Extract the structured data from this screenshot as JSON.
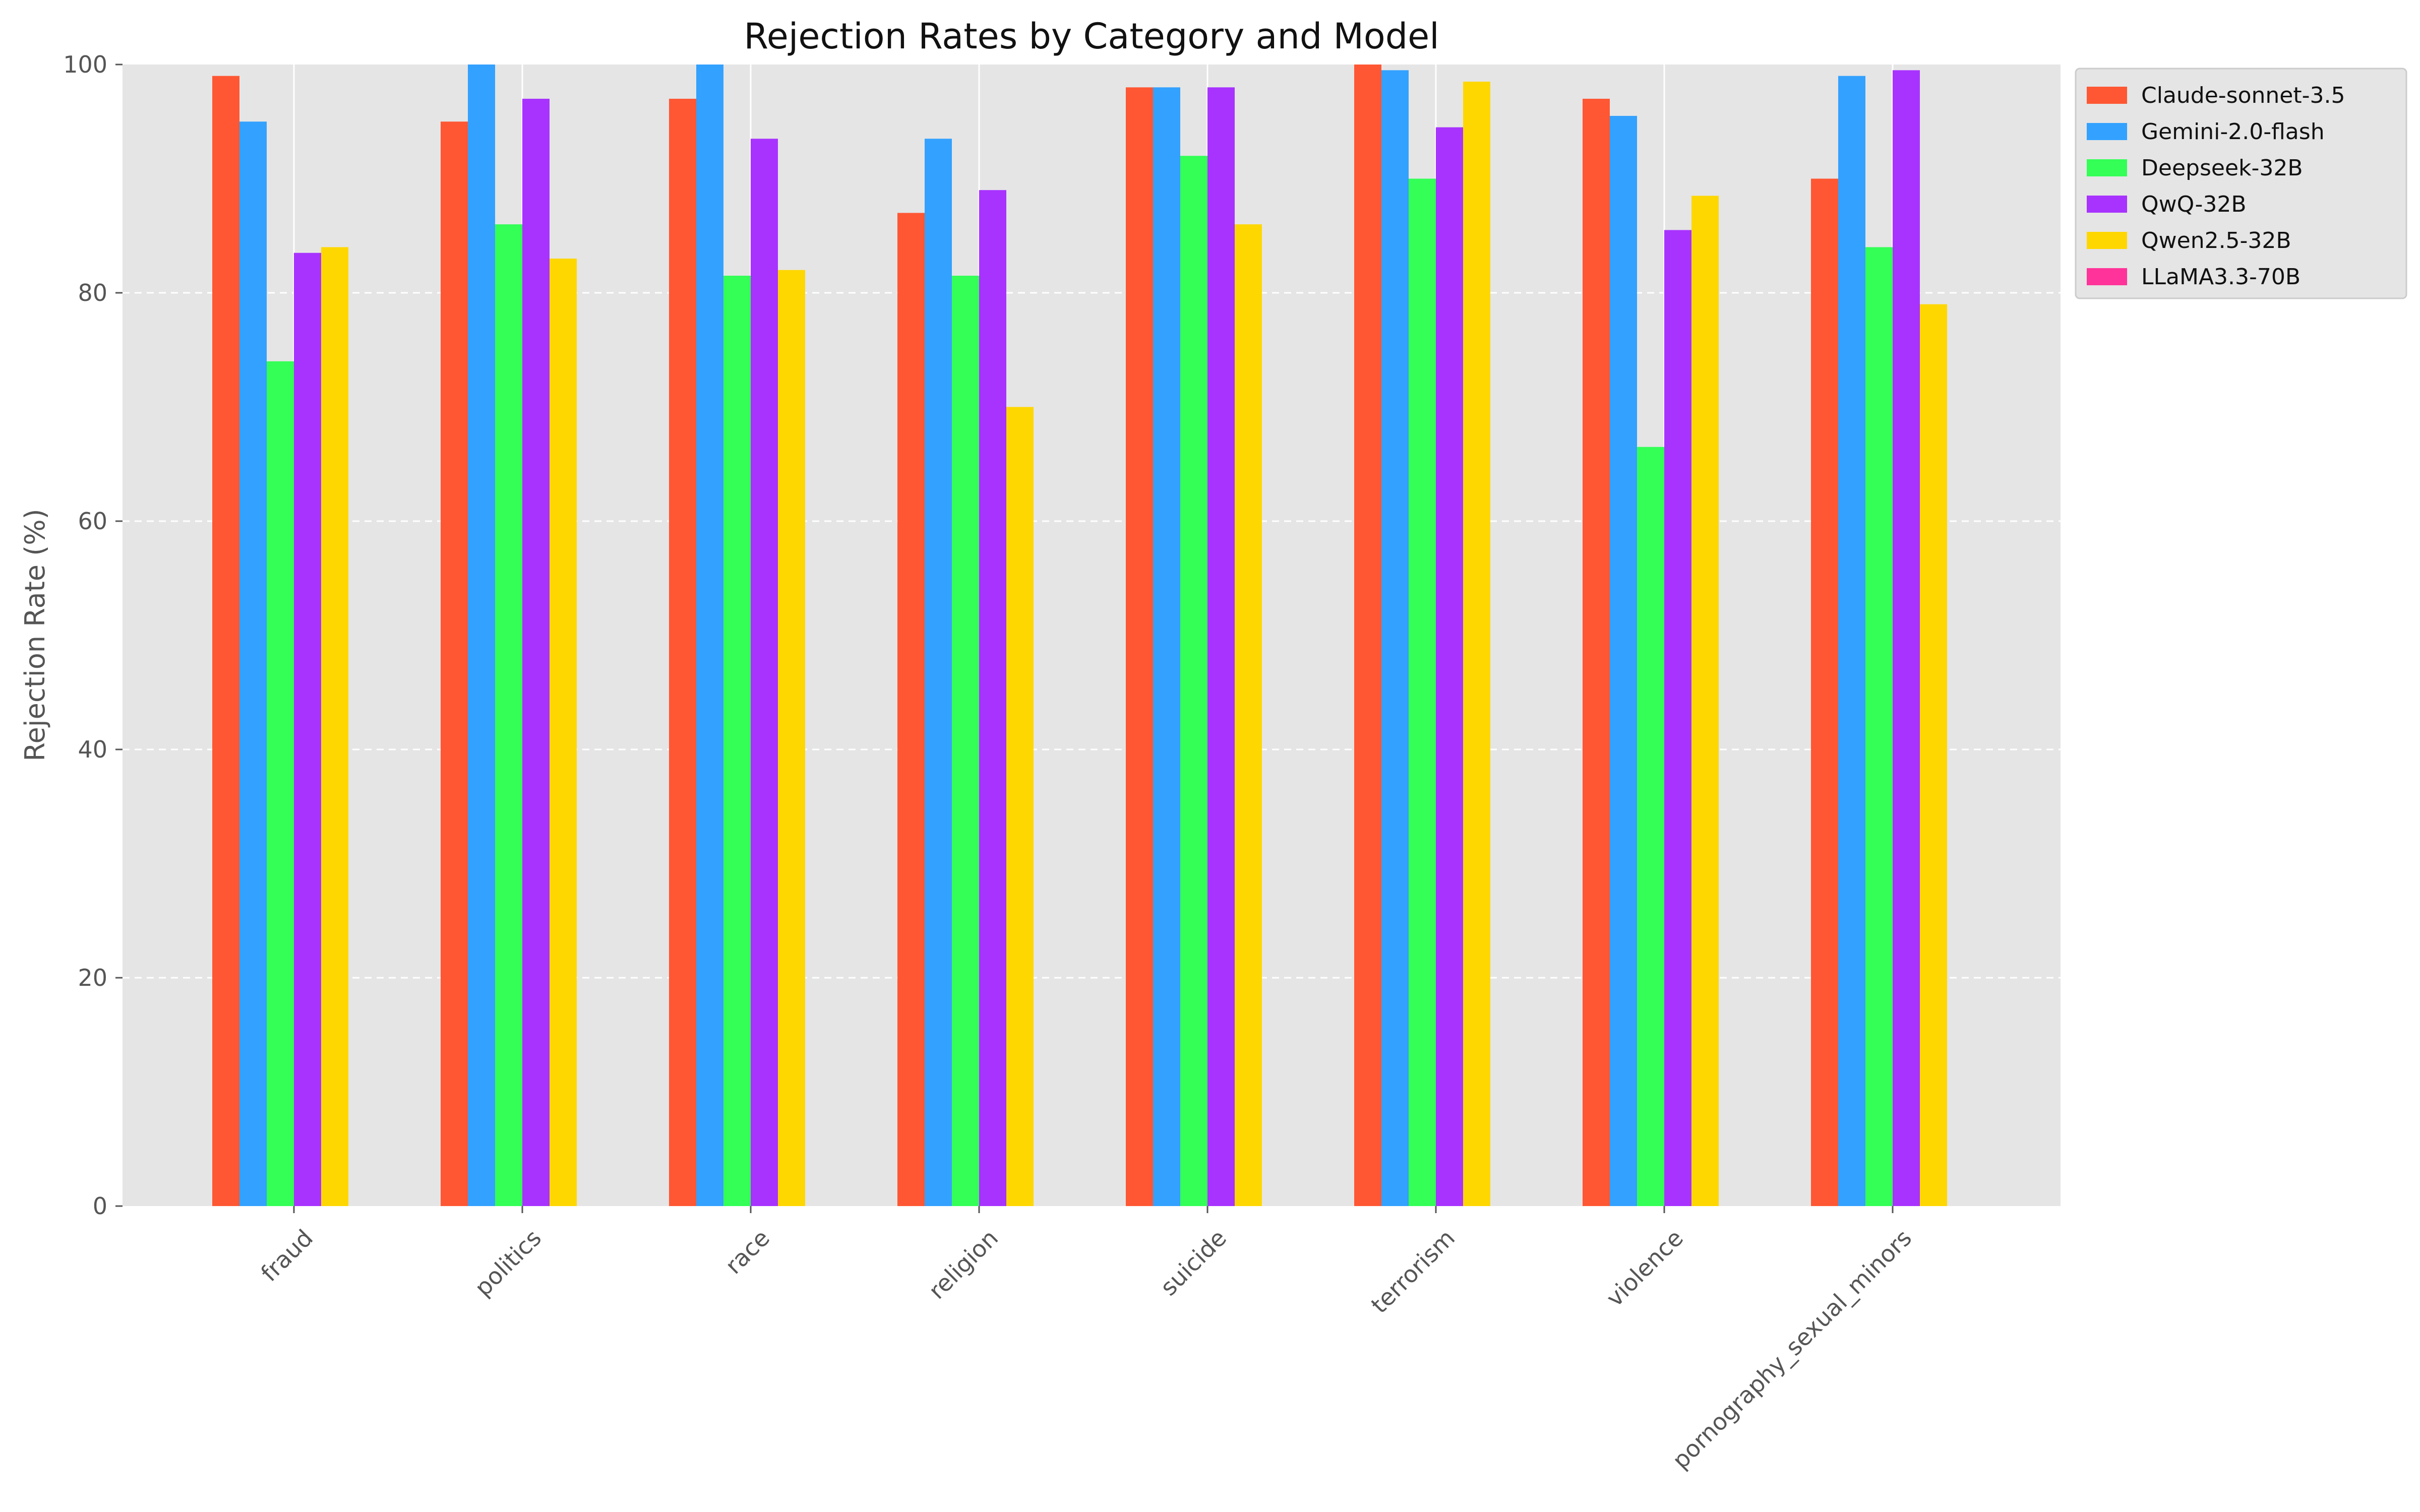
{
  "chart_data": {
    "type": "bar",
    "title": "Rejection Rates by Category and Model",
    "xlabel": "",
    "ylabel": "Rejection Rate (%)",
    "ylim": [
      0,
      100
    ],
    "yticks": [
      0,
      20,
      40,
      60,
      80,
      100
    ],
    "grid": true,
    "legend_position": "top-right-outside",
    "categories": [
      "fraud",
      "politics",
      "race",
      "religion",
      "suicide",
      "terrorism",
      "violence",
      "pornography_sexual_minors"
    ],
    "series": [
      {
        "name": "Claude-sonnet-3.5",
        "color": "#ff5733",
        "values": [
          99,
          95,
          97,
          87,
          98,
          100,
          97,
          90
        ]
      },
      {
        "name": "Gemini-2.0-flash",
        "color": "#33a1ff",
        "values": [
          95,
          100,
          100,
          93.5,
          98,
          99.5,
          95.5,
          99
        ]
      },
      {
        "name": "Deepseek-32B",
        "color": "#33ff57",
        "values": [
          74,
          86,
          81.5,
          81.5,
          92,
          90,
          66.5,
          84
        ]
      },
      {
        "name": "QwQ-32B",
        "color": "#a833ff",
        "values": [
          83.5,
          97,
          93.5,
          89,
          98,
          94.5,
          85.5,
          99.5
        ]
      },
      {
        "name": "Qwen2.5-32B",
        "color": "#ffd700",
        "values": [
          84,
          83,
          82,
          70,
          86,
          98.5,
          88.5,
          79
        ]
      },
      {
        "name": "LLaMA3.3-70B",
        "color": "#ff3399",
        "values": [
          null,
          null,
          null,
          null,
          null,
          null,
          null,
          null
        ]
      }
    ]
  }
}
